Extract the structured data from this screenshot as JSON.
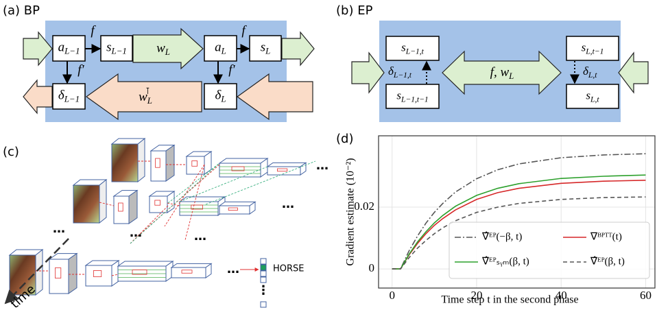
{
  "panel_a": {
    "label": "(a) BP",
    "nodes": [
      {
        "base": "a",
        "sub": "L−1"
      },
      {
        "base": "s",
        "sub": "L−1"
      },
      {
        "base": "a",
        "sub": "L"
      },
      {
        "base": "s",
        "sub": "L"
      },
      {
        "base": "δ",
        "sub": "L−1"
      },
      {
        "base": "δ",
        "sub": "L"
      }
    ],
    "arrow_labels": [
      "f",
      "f",
      "f′",
      "f′"
    ],
    "weights": [
      {
        "base": "w",
        "sub": "L"
      },
      {
        "base": "w",
        "sub": "L",
        "sup": "⊺"
      }
    ]
  },
  "panel_b": {
    "label": "(b) EP",
    "nodes": [
      {
        "base": "s",
        "sub": "L−1,t"
      },
      {
        "base": "s",
        "sub": "L−1,t−1"
      },
      {
        "base": "s",
        "sub": "L,t−1"
      },
      {
        "base": "s",
        "sub": "L,t"
      }
    ],
    "deltas": [
      {
        "base": "δ",
        "sub": "L−1,t"
      },
      {
        "base": "δ",
        "sub": "L,t"
      }
    ],
    "weights": {
      "base": "f, w",
      "sub": "L"
    }
  },
  "panel_c": {
    "label": "(c)",
    "ellipses": [
      "…",
      "…",
      "…",
      "…",
      "…",
      "…",
      "⋮"
    ],
    "output": "HORSE",
    "axis": "time"
  },
  "chart_data": {
    "type": "line",
    "panel_label": "(d)",
    "x_label": "Time step t in the second phase",
    "y_label": "Gradient estimate (10⁻²)",
    "x": [
      0,
      2,
      4,
      6,
      8,
      10,
      12,
      15,
      20,
      25,
      30,
      40,
      50,
      60
    ],
    "series": [
      {
        "name": "∇̂ᴱᴾ(−β, t)",
        "color": "#555555",
        "linestyle": "dashdot",
        "values": [
          0,
          0,
          0.0058,
          0.0106,
          0.0148,
          0.0183,
          0.0212,
          0.0249,
          0.0292,
          0.0321,
          0.034,
          0.036,
          0.0369,
          0.0373
        ]
      },
      {
        "name": "∇ᴮᴾᵀᵀ(t)",
        "color": "#d62728",
        "linestyle": "solid",
        "values": [
          0,
          0,
          0.0045,
          0.0082,
          0.0114,
          0.0141,
          0.0163,
          0.0191,
          0.0225,
          0.0247,
          0.0261,
          0.0277,
          0.0284,
          0.0287
        ]
      },
      {
        "name": "∇̂ᴱᴾₛᵧₘ(β, t)",
        "color": "#2ca02c",
        "linestyle": "solid",
        "values": [
          0,
          0,
          0.0047,
          0.0087,
          0.012,
          0.0149,
          0.0173,
          0.0203,
          0.0238,
          0.0261,
          0.0276,
          0.0293,
          0.03,
          0.0304
        ]
      },
      {
        "name": "∇̂ᴱᴾ(β, t)",
        "color": "#555555",
        "linestyle": "dashed",
        "values": [
          0,
          0,
          0.0036,
          0.0067,
          0.0092,
          0.0114,
          0.0133,
          0.0156,
          0.0183,
          0.02,
          0.0212,
          0.0225,
          0.0231,
          0.0233
        ]
      }
    ],
    "xlim": [
      -3.2,
      62.2
    ],
    "ylim": [
      -0.0062,
      0.0431
    ],
    "xticks": [
      0,
      20,
      40,
      60
    ],
    "yticks": [
      0,
      0.02
    ],
    "grid": true,
    "legend": "lower right"
  }
}
